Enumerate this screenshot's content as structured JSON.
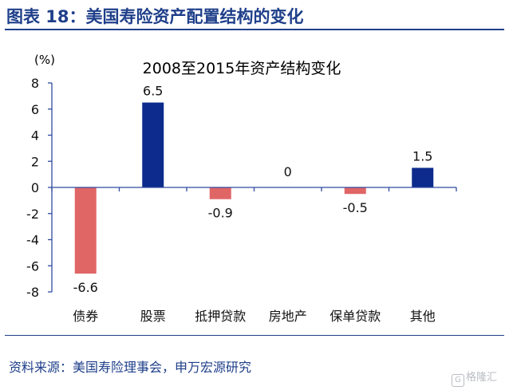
{
  "figure": {
    "title": "图表 18：美国寿险资产配置结构的变化",
    "source": "资料来源：美国寿险理事会，申万宏源研究",
    "watermark": "格隆汇"
  },
  "colors": {
    "title": "#1f3f8a",
    "positive_bar": "#0d2b8c",
    "negative_bar": "#e06666",
    "axis": "#2f4ba0",
    "text": "#111111"
  },
  "chart_data": {
    "type": "bar",
    "title": "2008至2015年资产结构变化",
    "ylabel": "(%)",
    "xlabel": "",
    "categories": [
      "债券",
      "股票",
      "抵押贷款",
      "房地产",
      "保单贷款",
      "其他"
    ],
    "values": [
      -6.6,
      6.5,
      -0.9,
      0,
      -0.5,
      1.5
    ],
    "data_labels": [
      "-6.6",
      "6.5",
      "-0.9",
      "0",
      "-0.5",
      "1.5"
    ],
    "ylim": [
      -8,
      8
    ],
    "yticks": [
      8,
      6,
      4,
      2,
      0,
      -2,
      -4,
      -6,
      -8
    ],
    "grid": false,
    "legend": "none"
  }
}
